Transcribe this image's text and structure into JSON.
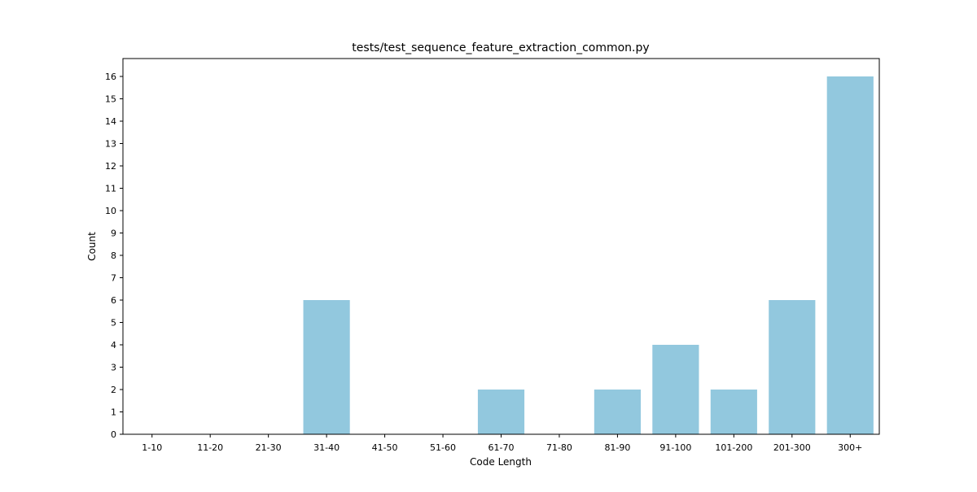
{
  "chart_data": {
    "type": "bar",
    "title": "tests/test_sequence_feature_extraction_common.py",
    "xlabel": "Code Length",
    "ylabel": "Count",
    "categories": [
      "1-10",
      "11-20",
      "21-30",
      "31-40",
      "41-50",
      "51-60",
      "61-70",
      "71-80",
      "81-90",
      "91-100",
      "101-200",
      "201-300",
      "300+"
    ],
    "values": [
      0,
      0,
      0,
      6,
      0,
      0,
      2,
      0,
      2,
      4,
      2,
      6,
      16
    ],
    "ylim": [
      0,
      16.8
    ],
    "yticks": [
      0,
      1,
      2,
      3,
      4,
      5,
      6,
      7,
      8,
      9,
      10,
      11,
      12,
      13,
      14,
      15,
      16
    ],
    "grid": false,
    "bar_color": "#92c8de"
  }
}
